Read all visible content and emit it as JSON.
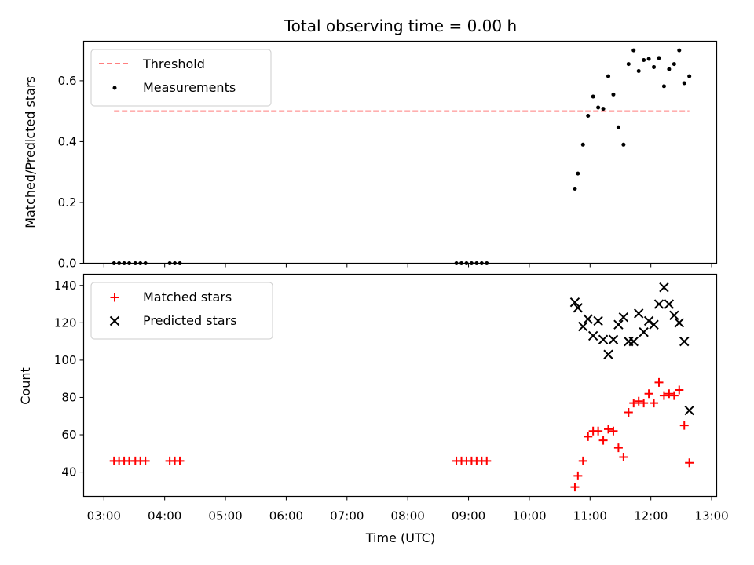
{
  "chart_data": [
    {
      "type": "scatter",
      "title": "Total observing time = 0.00 h",
      "xlabel": "",
      "ylabel": "Matched/Predicted stars",
      "ylim": [
        0,
        0.73
      ],
      "yticks": [
        0.0,
        0.2,
        0.4,
        0.6
      ],
      "ytick_labels": [
        "0.0",
        "0.2",
        "0.4",
        "0.6"
      ],
      "legend_position": "top-left",
      "grid": false,
      "series": [
        {
          "name": "Threshold",
          "kind": "dashed-line",
          "color": "#ff7f7f",
          "x": [
            "03:10",
            "12:38"
          ],
          "y": [
            0.5,
            0.5
          ]
        },
        {
          "name": "Measurements",
          "kind": "dot",
          "color": "#000000",
          "x": [
            "03:10",
            "03:15",
            "03:20",
            "03:25",
            "03:31",
            "03:36",
            "03:41",
            "04:05",
            "04:10",
            "04:15",
            "08:48",
            "08:53",
            "08:58",
            "09:03",
            "09:08",
            "09:13",
            "09:18",
            "10:45",
            "10:48",
            "10:53",
            "10:58",
            "11:03",
            "11:08",
            "11:13",
            "11:18",
            "11:23",
            "11:28",
            "11:33",
            "11:38",
            "11:43",
            "11:48",
            "11:53",
            "11:58",
            "12:03",
            "12:08",
            "12:13",
            "12:18",
            "12:23",
            "12:28",
            "12:33",
            "12:38"
          ],
          "y": [
            0.0,
            0.0,
            0.0,
            0.0,
            0.0,
            0.0,
            0.0,
            0.0,
            0.0,
            0.0,
            0.0,
            0.0,
            0.0,
            0.0,
            0.0,
            0.0,
            0.0,
            0.245,
            0.295,
            0.39,
            0.485,
            0.548,
            0.512,
            0.508,
            0.615,
            0.555,
            0.447,
            0.39,
            0.655,
            0.7,
            0.632,
            0.668,
            0.672,
            0.645,
            0.675,
            0.582,
            0.638,
            0.655,
            0.7,
            0.592,
            0.615
          ]
        }
      ]
    },
    {
      "type": "scatter",
      "title": "",
      "xlabel": "Time (UTC)",
      "ylabel": "Count",
      "ylim": [
        27,
        146
      ],
      "yticks": [
        40,
        60,
        80,
        100,
        120,
        140
      ],
      "ytick_labels": [
        "40",
        "60",
        "80",
        "100",
        "120",
        "140"
      ],
      "xlim": [
        "02:40",
        "13:05"
      ],
      "xticks": [
        "03:00",
        "04:00",
        "05:00",
        "06:00",
        "07:00",
        "08:00",
        "09:00",
        "10:00",
        "11:00",
        "12:00",
        "13:00"
      ],
      "legend_position": "top-left",
      "grid": false,
      "series": [
        {
          "name": "Matched stars",
          "kind": "plus",
          "color": "#ff0000",
          "x": [
            "03:10",
            "03:15",
            "03:20",
            "03:25",
            "03:31",
            "03:36",
            "03:41",
            "04:05",
            "04:10",
            "04:15",
            "08:48",
            "08:53",
            "08:58",
            "09:03",
            "09:08",
            "09:13",
            "09:18",
            "10:45",
            "10:48",
            "10:53",
            "10:58",
            "11:03",
            "11:08",
            "11:13",
            "11:18",
            "11:23",
            "11:28",
            "11:33",
            "11:38",
            "11:43",
            "11:48",
            "11:53",
            "11:58",
            "12:03",
            "12:08",
            "12:13",
            "12:18",
            "12:23",
            "12:28",
            "12:33",
            "12:38"
          ],
          "y": [
            46,
            46,
            46,
            46,
            46,
            46,
            46,
            46,
            46,
            46,
            46,
            46,
            46,
            46,
            46,
            46,
            46,
            32,
            38,
            46,
            59,
            62,
            62,
            57,
            63,
            62,
            53,
            48,
            72,
            77,
            78,
            77,
            82,
            77,
            88,
            81,
            82,
            81,
            84,
            65,
            45
          ]
        },
        {
          "name": "Predicted stars",
          "kind": "cross",
          "color": "#000000",
          "x": [
            "10:45",
            "10:48",
            "10:53",
            "10:58",
            "11:03",
            "11:08",
            "11:13",
            "11:18",
            "11:23",
            "11:28",
            "11:33",
            "11:38",
            "11:43",
            "11:48",
            "11:53",
            "11:58",
            "12:03",
            "12:08",
            "12:13",
            "12:18",
            "12:23",
            "12:28",
            "12:33",
            "12:38"
          ],
          "y": [
            131,
            128,
            118,
            122,
            113,
            121,
            111,
            103,
            111,
            119,
            123,
            110,
            110,
            125,
            115,
            121,
            119,
            130,
            139,
            130,
            124,
            120,
            110,
            73
          ]
        }
      ]
    }
  ]
}
